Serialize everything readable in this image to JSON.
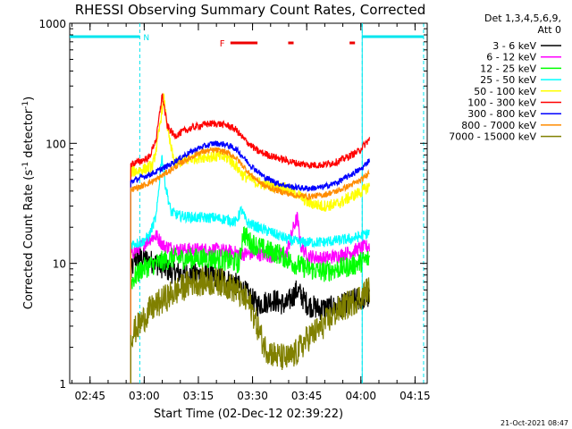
{
  "chart_data": {
    "type": "line",
    "title": "RHESSI Observing Summary Count Rates, Corrected",
    "xlabel": "Start Time (02-Dec-12 02:39:22)",
    "ylabel": "Corrected Count Rate (s",
    "ylabel_sup1": "-1",
    "ylabel_mid": " detector",
    "ylabel_sup2": "-1",
    "ylabel_end": ")",
    "yscale": "log",
    "ylim": [
      1,
      1000
    ],
    "xlim_minutes": [
      0,
      99
    ],
    "x_ticks": [
      {
        "label": "02:45",
        "t": 5.63
      },
      {
        "label": "03:00",
        "t": 20.63
      },
      {
        "label": "03:15",
        "t": 35.63
      },
      {
        "label": "03:30",
        "t": 50.63
      },
      {
        "label": "03:45",
        "t": 65.63
      },
      {
        "label": "04:00",
        "t": 80.63
      },
      {
        "label": "04:15",
        "t": 95.63
      }
    ],
    "y_ticks": [
      {
        "label": "1",
        "v": 1
      },
      {
        "label": "10",
        "v": 10
      },
      {
        "label": "100",
        "v": 100
      },
      {
        "label": "1000",
        "v": 1000
      }
    ],
    "legend_header": [
      "Det 1,3,4,5,6,9,",
      "Att 0"
    ],
    "series": [
      {
        "name": "3 - 6 keV",
        "color": "#000000",
        "noise": 0.1,
        "start": 16.9,
        "points": [
          [
            16.9,
            8
          ],
          [
            18,
            11
          ],
          [
            20,
            11
          ],
          [
            24,
            10
          ],
          [
            28,
            8.5
          ],
          [
            34,
            8
          ],
          [
            38,
            8
          ],
          [
            42,
            7.5
          ],
          [
            45,
            7
          ],
          [
            48,
            6
          ],
          [
            52,
            4.5
          ],
          [
            56,
            5
          ],
          [
            60,
            4.5
          ],
          [
            63,
            6
          ],
          [
            66,
            4.5
          ],
          [
            69,
            4.2
          ],
          [
            73,
            4.3
          ],
          [
            76,
            4.5
          ],
          [
            79,
            5
          ],
          [
            83,
            5.2
          ]
        ]
      },
      {
        "name": "6 - 12 keV",
        "color": "#ff00ff",
        "noise": 0.06,
        "start": 16.9,
        "points": [
          [
            16.9,
            12
          ],
          [
            20,
            14
          ],
          [
            22,
            16
          ],
          [
            24,
            17
          ],
          [
            26,
            14
          ],
          [
            30,
            13
          ],
          [
            35,
            13
          ],
          [
            40,
            13
          ],
          [
            44,
            12.5
          ],
          [
            48,
            12
          ],
          [
            52,
            12
          ],
          [
            56,
            11.5
          ],
          [
            60,
            12
          ],
          [
            62,
            20
          ],
          [
            63,
            24
          ],
          [
            64,
            14
          ],
          [
            66,
            11.5
          ],
          [
            70,
            11
          ],
          [
            74,
            11.5
          ],
          [
            78,
            12.5
          ],
          [
            81,
            13.5
          ],
          [
            83,
            14
          ]
        ]
      },
      {
        "name": "12 - 25 keV",
        "color": "#00ff00",
        "noise": 0.09,
        "start": 16.9,
        "points": [
          [
            16.9,
            7
          ],
          [
            20,
            9
          ],
          [
            24,
            10
          ],
          [
            28,
            11
          ],
          [
            34,
            11
          ],
          [
            40,
            11
          ],
          [
            44,
            10.5
          ],
          [
            47,
            10
          ],
          [
            48,
            18
          ],
          [
            50,
            15
          ],
          [
            54,
            13
          ],
          [
            58,
            12
          ],
          [
            62,
            10
          ],
          [
            66,
            9
          ],
          [
            70,
            8.5
          ],
          [
            74,
            9
          ],
          [
            78,
            9.5
          ],
          [
            83,
            11
          ]
        ]
      },
      {
        "name": "25 - 50 keV",
        "color": "#00ffff",
        "noise": 0.045,
        "start": 16.9,
        "points": [
          [
            16.9,
            14.5
          ],
          [
            20,
            15
          ],
          [
            22,
            17
          ],
          [
            24,
            25
          ],
          [
            25.5,
            80
          ],
          [
            26.5,
            45
          ],
          [
            28,
            27
          ],
          [
            30,
            25
          ],
          [
            35,
            24
          ],
          [
            40,
            24
          ],
          [
            44,
            23
          ],
          [
            46,
            22
          ],
          [
            47.5,
            28
          ],
          [
            49,
            22
          ],
          [
            52,
            20
          ],
          [
            56,
            18
          ],
          [
            60,
            16
          ],
          [
            63,
            15
          ],
          [
            66,
            15
          ],
          [
            70,
            15
          ],
          [
            74,
            15.5
          ],
          [
            78,
            16
          ],
          [
            81,
            17
          ],
          [
            83,
            18
          ]
        ]
      },
      {
        "name": "50 - 100 keV",
        "color": "#ffff00",
        "noise": 0.05,
        "start": 16.9,
        "points": [
          [
            16.9,
            58
          ],
          [
            20,
            60
          ],
          [
            23,
            65
          ],
          [
            24.5,
            110
          ],
          [
            26,
            240
          ],
          [
            27.5,
            110
          ],
          [
            29,
            68
          ],
          [
            32,
            72
          ],
          [
            36,
            77
          ],
          [
            40,
            78
          ],
          [
            44,
            75
          ],
          [
            46,
            65
          ],
          [
            48,
            54
          ],
          [
            52,
            47
          ],
          [
            56,
            44
          ],
          [
            60,
            42
          ],
          [
            63,
            38
          ],
          [
            66,
            32
          ],
          [
            70,
            30
          ],
          [
            74,
            31
          ],
          [
            78,
            36
          ],
          [
            81,
            40
          ],
          [
            83,
            44
          ]
        ]
      },
      {
        "name": "100 - 300 keV",
        "color": "#ff0000",
        "noise": 0.03,
        "start": 16.9,
        "points": [
          [
            16.9,
            67
          ],
          [
            19,
            70
          ],
          [
            22,
            76
          ],
          [
            24,
            110
          ],
          [
            25.6,
            255
          ],
          [
            27,
            140
          ],
          [
            29,
            115
          ],
          [
            32,
            128
          ],
          [
            35,
            138
          ],
          [
            38,
            145
          ],
          [
            41,
            146
          ],
          [
            44,
            140
          ],
          [
            46,
            130
          ],
          [
            48,
            110
          ],
          [
            52,
            86
          ],
          [
            56,
            78
          ],
          [
            60,
            72
          ],
          [
            63,
            68
          ],
          [
            66,
            66
          ],
          [
            70,
            66
          ],
          [
            74,
            70
          ],
          [
            77,
            77
          ],
          [
            80,
            86
          ],
          [
            83,
            108
          ]
        ]
      },
      {
        "name": "300 - 800 keV",
        "color": "#0000ff",
        "noise": 0.025,
        "start": 16.9,
        "points": [
          [
            16.9,
            48
          ],
          [
            20,
            52
          ],
          [
            24,
            58
          ],
          [
            28,
            67
          ],
          [
            32,
            80
          ],
          [
            36,
            92
          ],
          [
            40,
            100
          ],
          [
            43,
            98
          ],
          [
            46,
            90
          ],
          [
            50,
            66
          ],
          [
            54,
            52
          ],
          [
            58,
            46
          ],
          [
            62,
            43
          ],
          [
            66,
            42
          ],
          [
            70,
            43
          ],
          [
            74,
            47
          ],
          [
            78,
            55
          ],
          [
            81,
            62
          ],
          [
            83,
            73
          ]
        ]
      },
      {
        "name": "800 - 7000 keV",
        "color": "#ff8c00",
        "noise": 0.025,
        "start": 16.9,
        "points": [
          [
            16.9,
            41
          ],
          [
            20,
            44
          ],
          [
            24,
            50
          ],
          [
            28,
            60
          ],
          [
            32,
            72
          ],
          [
            36,
            84
          ],
          [
            40,
            88
          ],
          [
            43,
            85
          ],
          [
            46,
            76
          ],
          [
            50,
            55
          ],
          [
            54,
            44
          ],
          [
            58,
            40
          ],
          [
            62,
            37
          ],
          [
            66,
            36
          ],
          [
            70,
            37
          ],
          [
            74,
            40
          ],
          [
            78,
            45
          ],
          [
            81,
            50
          ],
          [
            83,
            58
          ]
        ]
      },
      {
        "name": "7000 - 15000 keV",
        "color": "#808000",
        "noise": 0.12,
        "start": 16.9,
        "points": [
          [
            16.9,
            2.5
          ],
          [
            19,
            3
          ],
          [
            22,
            4
          ],
          [
            26,
            5
          ],
          [
            30,
            6
          ],
          [
            34,
            7
          ],
          [
            38,
            7
          ],
          [
            42,
            7
          ],
          [
            46,
            6
          ],
          [
            50,
            4.5
          ],
          [
            52,
            3
          ],
          [
            54,
            2
          ],
          [
            57,
            1.7
          ],
          [
            60,
            1.6
          ],
          [
            62,
            1.7
          ],
          [
            64,
            2
          ],
          [
            66,
            2.4
          ],
          [
            70,
            3
          ],
          [
            74,
            4
          ],
          [
            78,
            4.7
          ],
          [
            81,
            5.4
          ],
          [
            83,
            6.2
          ]
        ]
      }
    ],
    "flags": {
      "cyan_markers": [
        {
          "label": "N",
          "start": 0,
          "end": 19.4
        },
        {
          "label": "",
          "start": 81,
          "end": 98
        }
      ],
      "red_flags": [
        {
          "label": "F",
          "start": 44.5,
          "end": 52
        },
        {
          "label": "",
          "start": 60.5,
          "end": 62
        },
        {
          "label": "",
          "start": 77.5,
          "end": 79
        }
      ]
    }
  },
  "footer_date": "21-Oct-2021 08:47"
}
